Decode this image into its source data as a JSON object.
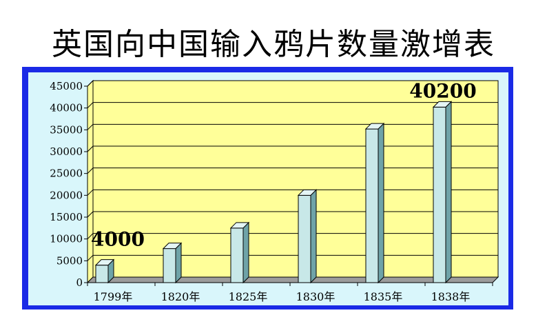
{
  "title": "英国向中国输入鸦片数量激增表",
  "chart_data": {
    "type": "bar",
    "title": "英国向中国输入鸦片数量激增表",
    "categories": [
      "1799年",
      "1820年",
      "1825年",
      "1830年",
      "1835年",
      "1838年"
    ],
    "values": [
      4000,
      7800,
      12500,
      20000,
      35200,
      40200
    ],
    "ylim": [
      0,
      45000
    ],
    "yticks": [
      "0",
      "5000",
      "10000",
      "15000",
      "20000",
      "25000",
      "30000",
      "35000",
      "40000",
      "45000"
    ],
    "grid": true,
    "annotations": [
      {
        "text": "4000",
        "category": "1799年"
      },
      {
        "text": "40200",
        "category": "1838年"
      }
    ],
    "colors": {
      "plot_background": "#ffff99",
      "bar_front": "#c8e8e8",
      "bar_side": "#6fa3a8",
      "bar_top": "#e4f5f5",
      "frame": "#1a2ae6",
      "chart_background": "#d9f6fb"
    }
  }
}
